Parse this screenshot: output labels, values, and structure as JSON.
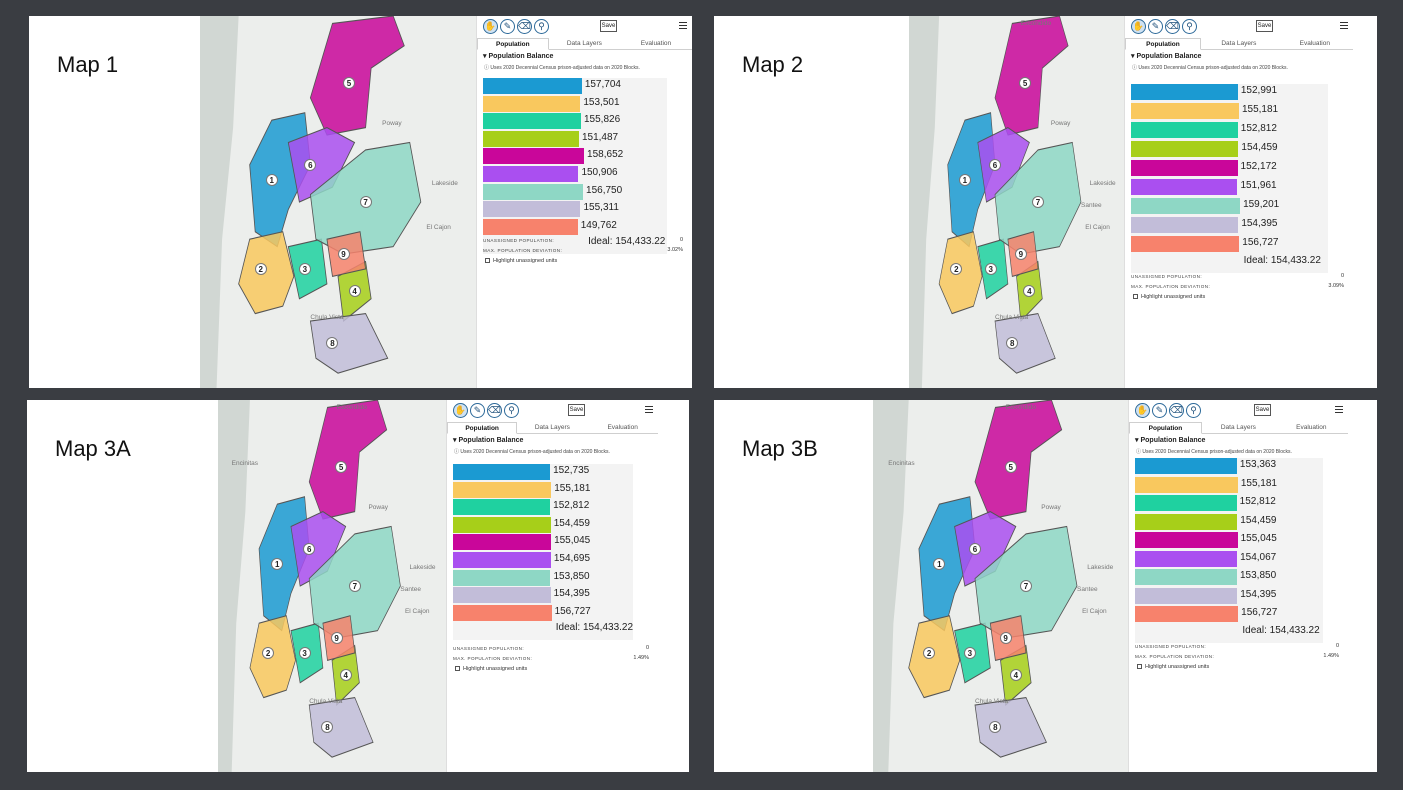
{
  "panels": [
    {
      "title": "Map 1",
      "places": [
        "Poway",
        "Lakeside",
        "El Cajon",
        "Chula Vista"
      ],
      "districts": [
        "1",
        "2",
        "3",
        "4",
        "5",
        "6",
        "7",
        "8",
        "9"
      ],
      "toolbar": {
        "save_label": "Save"
      },
      "tabs": [
        "Population",
        "Data Layers",
        "Evaluation"
      ],
      "section_title": "Population Balance",
      "note": "Uses 2020 Decennial Census prison-adjusted data on 2020 Blocks.",
      "bars": [
        "157,704",
        "153,501",
        "155,826",
        "151,487",
        "158,652",
        "150,906",
        "156,750",
        "155,311",
        "149,762"
      ],
      "bar_fractions": [
        0.968,
        0.954,
        0.96,
        0.94,
        0.99,
        0.935,
        0.98,
        0.955,
        0.928
      ],
      "ideal": "Ideal: 154,433.22",
      "unassigned_label": "UNASSIGNED POPULATION:",
      "unassigned_value": "0",
      "deviation_label": "MAX. POPULATION DEVIATION:",
      "deviation_value": "3.02%",
      "highlight_label": "Highlight unassigned units"
    },
    {
      "title": "Map 2",
      "places": [
        "Escondido",
        "Poway",
        "Lakeside",
        "Santee",
        "El Cajon",
        "Chula Vista"
      ],
      "districts": [
        "1",
        "2",
        "3",
        "4",
        "5",
        "6",
        "7",
        "8",
        "9"
      ],
      "toolbar": {
        "save_label": "Save"
      },
      "tabs": [
        "Population",
        "Data Layers",
        "Evaluation"
      ],
      "section_title": "Population Balance",
      "note": "Uses 2020 Decennial Census prison-adjusted data on 2020 Blocks.",
      "bars": [
        "152,991",
        "155,181",
        "152,812",
        "154,459",
        "152,172",
        "151,961",
        "159,201",
        "154,395",
        "156,727"
      ],
      "bar_fractions": [
        0.975,
        0.985,
        0.974,
        0.98,
        0.972,
        0.971,
        0.995,
        0.979,
        0.988
      ],
      "ideal": "Ideal: 154,433.22",
      "unassigned_label": "UNASSIGNED POPULATION:",
      "unassigned_value": "0",
      "deviation_label": "MAX. POPULATION DEVIATION:",
      "deviation_value": "3.09%",
      "highlight_label": "Highlight unassigned units"
    },
    {
      "title": "Map 3A",
      "places": [
        "Escondido",
        "Encinitas",
        "Poway",
        "Lakeside",
        "Santee",
        "El Cajon",
        "Chula Vista"
      ],
      "districts": [
        "1",
        "2",
        "3",
        "4",
        "5",
        "6",
        "7",
        "8",
        "9"
      ],
      "toolbar": {
        "save_label": "Save"
      },
      "tabs": [
        "Population",
        "Data Layers",
        "Evaluation"
      ],
      "section_title": "Population Balance",
      "note": "Uses 2020 Decennial Census prison-adjusted data on 2020 Blocks.",
      "bars": [
        "152,735",
        "155,181",
        "152,812",
        "154,459",
        "155,045",
        "154,695",
        "153,850",
        "154,395",
        "156,727"
      ],
      "bar_fractions": [
        0.973,
        0.985,
        0.974,
        0.98,
        0.983,
        0.981,
        0.977,
        0.979,
        0.988
      ],
      "ideal": "Ideal: 154,433.22",
      "unassigned_label": "UNASSIGNED POPULATION:",
      "unassigned_value": "0",
      "deviation_label": "MAX. POPULATION DEVIATION:",
      "deviation_value": "1.49%",
      "highlight_label": "Highlight unassigned units"
    },
    {
      "title": "Map 3B",
      "places": [
        "Escondido",
        "Encinitas",
        "Poway",
        "Lakeside",
        "Santee",
        "El Cajon",
        "Chula Vista"
      ],
      "districts": [
        "1",
        "2",
        "3",
        "4",
        "5",
        "6",
        "7",
        "8",
        "9"
      ],
      "toolbar": {
        "save_label": "Save"
      },
      "tabs": [
        "Population",
        "Data Layers",
        "Evaluation"
      ],
      "section_title": "Population Balance",
      "note": "Uses 2020 Decennial Census prison-adjusted data on 2020 Blocks.",
      "bars": [
        "153,363",
        "155,181",
        "152,812",
        "154,459",
        "155,045",
        "154,067",
        "153,850",
        "154,395",
        "156,727"
      ],
      "bar_fractions": [
        0.976,
        0.985,
        0.974,
        0.98,
        0.983,
        0.978,
        0.977,
        0.979,
        0.988
      ],
      "ideal": "Ideal: 154,433.22",
      "unassigned_label": "UNASSIGNED POPULATION:",
      "unassigned_value": "0",
      "deviation_label": "MAX. POPULATION DEVIATION:",
      "deviation_value": "1.49%",
      "highlight_label": "Highlight unassigned units"
    }
  ],
  "colors": {
    "districts": [
      "#1b9ad2",
      "#f9c85e",
      "#1fd1a0",
      "#a7cf19",
      "#c9069a",
      "#aa4ff0",
      "#8ed7c5",
      "#c2bdd9",
      "#f7826c"
    ],
    "ocean": "#d1d7d3",
    "land": "#eceeec",
    "accent": "#2d6a9a"
  }
}
